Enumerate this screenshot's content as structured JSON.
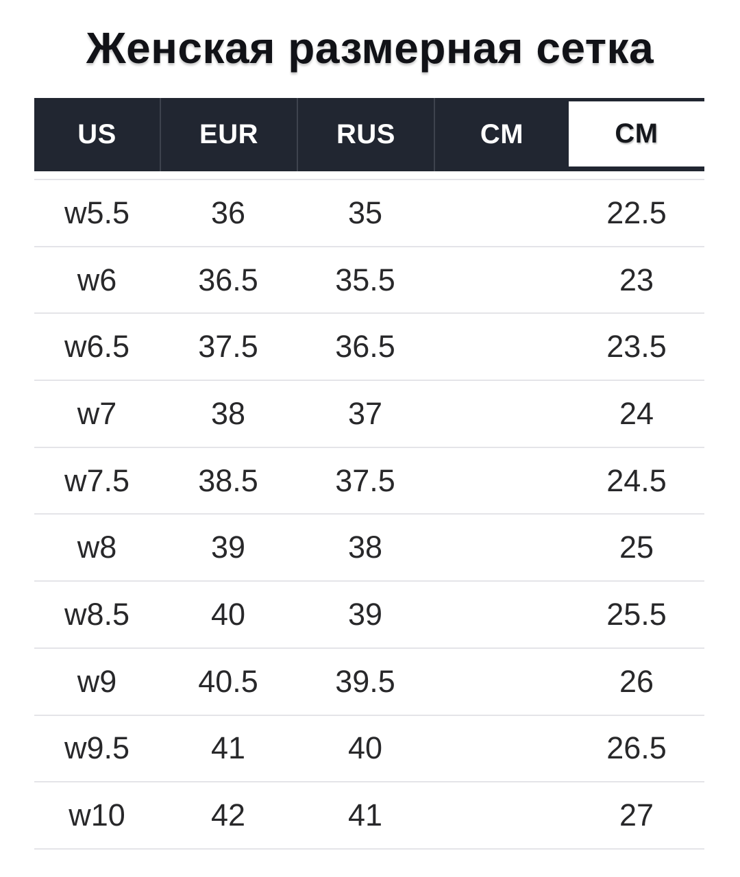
{
  "title": "Женская размерная сетка",
  "table": {
    "headers": [
      {
        "label": "US",
        "style": "dark"
      },
      {
        "label": "EUR",
        "style": "dark"
      },
      {
        "label": "RUS",
        "style": "dark"
      },
      {
        "label": "CM",
        "style": "dark"
      },
      {
        "label": "CM",
        "style": "highlight"
      }
    ],
    "rows": [
      [
        "w5.5",
        "36",
        "35",
        "",
        "22.5"
      ],
      [
        "w6",
        "36.5",
        "35.5",
        "",
        "23"
      ],
      [
        "w6.5",
        "37.5",
        "36.5",
        "",
        "23.5"
      ],
      [
        "w7",
        "38",
        "37",
        "",
        "24"
      ],
      [
        "w7.5",
        "38.5",
        "37.5",
        "",
        "24.5"
      ],
      [
        "w8",
        "39",
        "38",
        "",
        "25"
      ],
      [
        "w8.5",
        "40",
        "39",
        "",
        "25.5"
      ],
      [
        "w9",
        "40.5",
        "39.5",
        "",
        "26"
      ],
      [
        "w9.5",
        "41",
        "40",
        "",
        "26.5"
      ],
      [
        "w10",
        "42",
        "41",
        "",
        "27"
      ]
    ]
  },
  "colors": {
    "header_bg": "#212631",
    "header_text": "#ffffff",
    "header_divider": "#3e434e",
    "highlight_cell_bg": "#ffffff",
    "highlight_cell_text": "#15171c",
    "body_text": "#28282a",
    "row_divider": "#e4e4e8",
    "page_bg": "#ffffff",
    "title_color": "#111217"
  }
}
